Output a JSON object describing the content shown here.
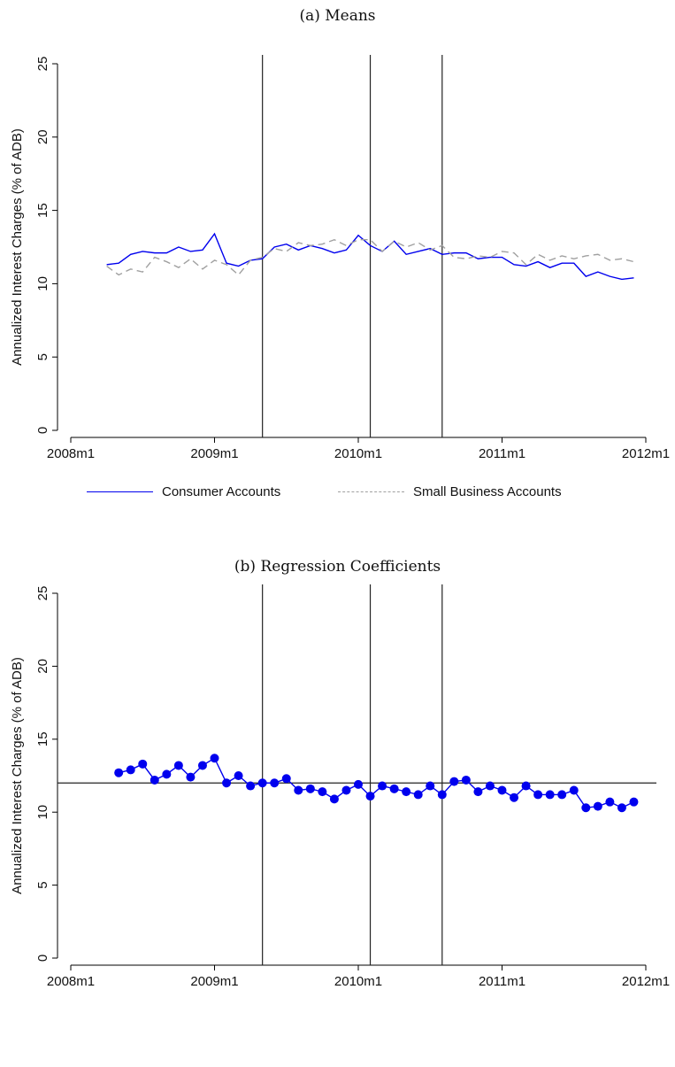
{
  "chart_data": [
    {
      "type": "line",
      "title": "(a)  Means",
      "xlabel": "",
      "ylabel": "Annualized Interest Charges (% of ADB)",
      "x_ticks": [
        "2008m1",
        "2009m1",
        "2010m1",
        "2011m1",
        "2012m1"
      ],
      "y_ticks": [
        "0",
        "5",
        "10",
        "15",
        "20",
        "25"
      ],
      "ylim": [
        0,
        25
      ],
      "x_start": "2008m4",
      "vertical_lines": [
        "2009m5",
        "2010m2",
        "2010m8"
      ],
      "legend_position": "bottom",
      "series": [
        {
          "name": "Consumer Accounts",
          "color": "#0000ee",
          "style": "solid",
          "values": [
            11.3,
            11.4,
            12.0,
            12.2,
            12.1,
            12.1,
            12.5,
            12.2,
            12.3,
            13.4,
            11.4,
            11.2,
            11.6,
            11.7,
            12.5,
            12.7,
            12.3,
            12.6,
            12.4,
            12.1,
            12.3,
            13.3,
            12.6,
            12.2,
            12.9,
            12.0,
            12.2,
            12.4,
            12.0,
            12.1,
            12.1,
            11.7,
            11.8,
            11.8,
            11.3,
            11.2,
            11.5,
            11.1,
            11.4,
            11.4,
            10.5,
            10.8,
            10.5,
            10.3,
            10.4
          ]
        },
        {
          "name": "Small Business Accounts",
          "color": "#a0a0a0",
          "style": "dashed",
          "values": [
            11.2,
            10.6,
            11.0,
            10.8,
            11.8,
            11.5,
            11.1,
            11.7,
            11.0,
            11.6,
            11.3,
            10.6,
            11.6,
            11.8,
            12.4,
            12.2,
            12.8,
            12.6,
            12.7,
            13.0,
            12.6,
            13.0,
            13.0,
            12.2,
            12.9,
            12.5,
            12.8,
            12.3,
            12.6,
            11.8,
            11.7,
            11.9,
            11.8,
            12.2,
            12.1,
            11.3,
            12.0,
            11.6,
            11.9,
            11.7,
            11.9,
            12.0,
            11.6,
            11.7,
            11.5
          ]
        }
      ]
    },
    {
      "type": "scatter",
      "title": "(b)  Regression Coefficients",
      "xlabel": "",
      "ylabel": "Annualized Interest Charges (% of ADB)",
      "x_ticks": [
        "2008m1",
        "2009m1",
        "2010m1",
        "2011m1",
        "2012m1"
      ],
      "y_ticks": [
        "0",
        "5",
        "10",
        "15",
        "20",
        "25"
      ],
      "ylim": [
        0,
        25
      ],
      "x_start": "2008m5",
      "vertical_lines": [
        "2009m5",
        "2010m2",
        "2010m8"
      ],
      "horizontal_line": 12.0,
      "series": [
        {
          "color": "#0000ee",
          "connected": true,
          "values": [
            12.7,
            12.9,
            13.3,
            12.2,
            12.6,
            13.2,
            12.4,
            13.2,
            13.7,
            12.0,
            12.5,
            11.8,
            12.0,
            12.0,
            12.3,
            11.5,
            11.6,
            11.4,
            10.9,
            11.5,
            11.9,
            11.1,
            11.8,
            11.6,
            11.4,
            11.2,
            11.8,
            11.2,
            12.1,
            12.2,
            11.4,
            11.8,
            11.5,
            11.0,
            11.8,
            11.2,
            11.2,
            11.2,
            11.5,
            10.3,
            10.4,
            10.7,
            10.3,
            10.7
          ]
        }
      ]
    }
  ]
}
